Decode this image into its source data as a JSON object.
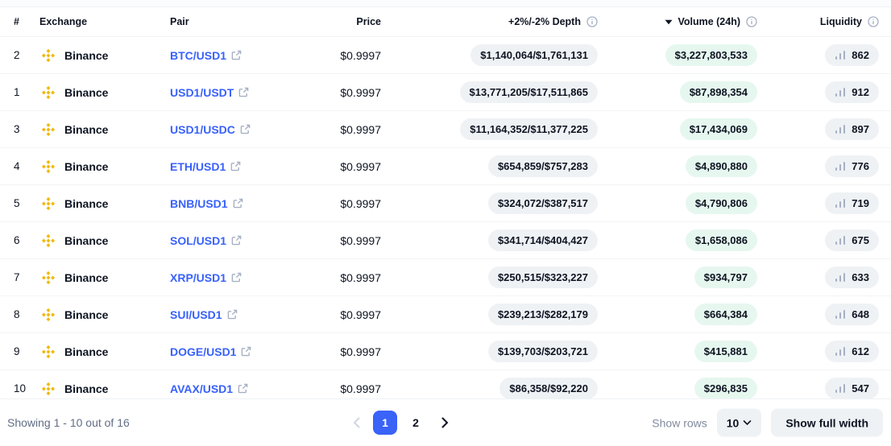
{
  "table": {
    "columns": {
      "rank": "#",
      "exchange": "Exchange",
      "pair": "Pair",
      "price": "Price",
      "depth": "+2%/-2% Depth",
      "volume": "Volume (24h)",
      "liquidity": "Liquidity"
    },
    "sort": {
      "column": "volume",
      "direction": "desc"
    },
    "rows": [
      {
        "rank": "2",
        "exchange": "Binance",
        "pair": "BTC/USD1",
        "price": "$0.9997",
        "depth": "$1,140,064/$1,761,131",
        "volume": "$3,227,803,533",
        "liquidity": "862"
      },
      {
        "rank": "1",
        "exchange": "Binance",
        "pair": "USD1/USDT",
        "price": "$0.9997",
        "depth": "$13,771,205/$17,511,865",
        "volume": "$87,898,354",
        "liquidity": "912"
      },
      {
        "rank": "3",
        "exchange": "Binance",
        "pair": "USD1/USDC",
        "price": "$0.9997",
        "depth": "$11,164,352/$11,377,225",
        "volume": "$17,434,069",
        "liquidity": "897"
      },
      {
        "rank": "4",
        "exchange": "Binance",
        "pair": "ETH/USD1",
        "price": "$0.9997",
        "depth": "$654,859/$757,283",
        "volume": "$4,890,880",
        "liquidity": "776"
      },
      {
        "rank": "5",
        "exchange": "Binance",
        "pair": "BNB/USD1",
        "price": "$0.9997",
        "depth": "$324,072/$387,517",
        "volume": "$4,790,806",
        "liquidity": "719"
      },
      {
        "rank": "6",
        "exchange": "Binance",
        "pair": "SOL/USD1",
        "price": "$0.9997",
        "depth": "$341,714/$404,427",
        "volume": "$1,658,086",
        "liquidity": "675"
      },
      {
        "rank": "7",
        "exchange": "Binance",
        "pair": "XRP/USD1",
        "price": "$0.9997",
        "depth": "$250,515/$323,227",
        "volume": "$934,797",
        "liquidity": "633"
      },
      {
        "rank": "8",
        "exchange": "Binance",
        "pair": "SUI/USD1",
        "price": "$0.9997",
        "depth": "$239,213/$282,179",
        "volume": "$664,384",
        "liquidity": "648"
      },
      {
        "rank": "9",
        "exchange": "Binance",
        "pair": "DOGE/USD1",
        "price": "$0.9997",
        "depth": "$139,703/$203,721",
        "volume": "$415,881",
        "liquidity": "612"
      },
      {
        "rank": "10",
        "exchange": "Binance",
        "pair": "AVAX/USD1",
        "price": "$0.9997",
        "depth": "$86,358/$92,220",
        "volume": "$296,835",
        "liquidity": "547"
      }
    ]
  },
  "footer": {
    "showing_text": "Showing 1 - 10 out of 16",
    "pagination": {
      "pages": [
        "1",
        "2"
      ],
      "active": "1"
    },
    "show_rows_label": "Show rows",
    "rows_per_page": "10",
    "full_width_label": "Show full width"
  },
  "colors": {
    "accent_blue": "#3A63F8",
    "binance_gold": "#F0B90B",
    "pill_gray": "#EFF2F5",
    "volume_green": "#E6F7EF",
    "text_dark": "#0D1421",
    "text_muted": "#808A9D",
    "link_blue": "#3861FB"
  },
  "icons": {
    "sort_desc": "caret-down-filled",
    "info": "circled-i",
    "exchange_logo": "binance-diamonds",
    "pair_external": "external-link",
    "liquidity_score": "bar-chart",
    "pager_prev": "chevron-left",
    "pager_next": "chevron-right",
    "rows_dropdown": "chevron-down"
  }
}
